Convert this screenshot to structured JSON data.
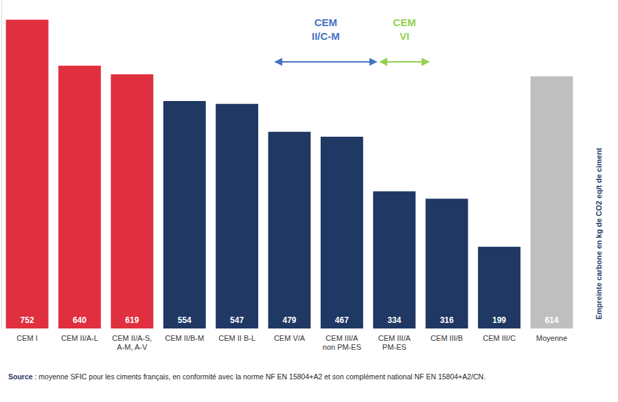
{
  "chart_data": {
    "type": "bar",
    "categories": [
      "CEM I",
      "CEM II/A-L",
      "CEM II/A-S,\nA-M, A-V",
      "CEM II/B-M",
      "CEM II B-L",
      "CEM V/A",
      "CEM III/A\nnon PM-ES",
      "CEM III/A\nPM-ES",
      "CEM III/B",
      "CEM III/C",
      "Moyenne"
    ],
    "values": [
      752,
      640,
      619,
      554,
      547,
      479,
      467,
      334,
      316,
      199,
      614
    ],
    "colors": [
      "#e02f3e",
      "#e02f3e",
      "#e02f3e",
      "#1f3864",
      "#1f3864",
      "#1f3864",
      "#1f3864",
      "#1f3864",
      "#1f3864",
      "#1f3864",
      "#bfbfbf"
    ],
    "ylabel": "Empreinte carbone en kg de CO2 eq/t de ciment",
    "ylim": [
      0,
      800
    ],
    "yticks": [],
    "tick_labels": "x",
    "data_labels": true,
    "grid": false,
    "annotations": [
      {
        "text": "CEM\nII/C-M",
        "from": 5,
        "to": 7,
        "color": "#4472c4"
      },
      {
        "text": "CEM\nVI",
        "from": 7,
        "to": 8,
        "color": "#92d050"
      }
    ],
    "source_label": "Source",
    "source": " : moyenne SFIC pour les ciments français, en conformité avec la norme NF EN 15804+A2 et son complément national NF EN 15804+A2/CN."
  }
}
